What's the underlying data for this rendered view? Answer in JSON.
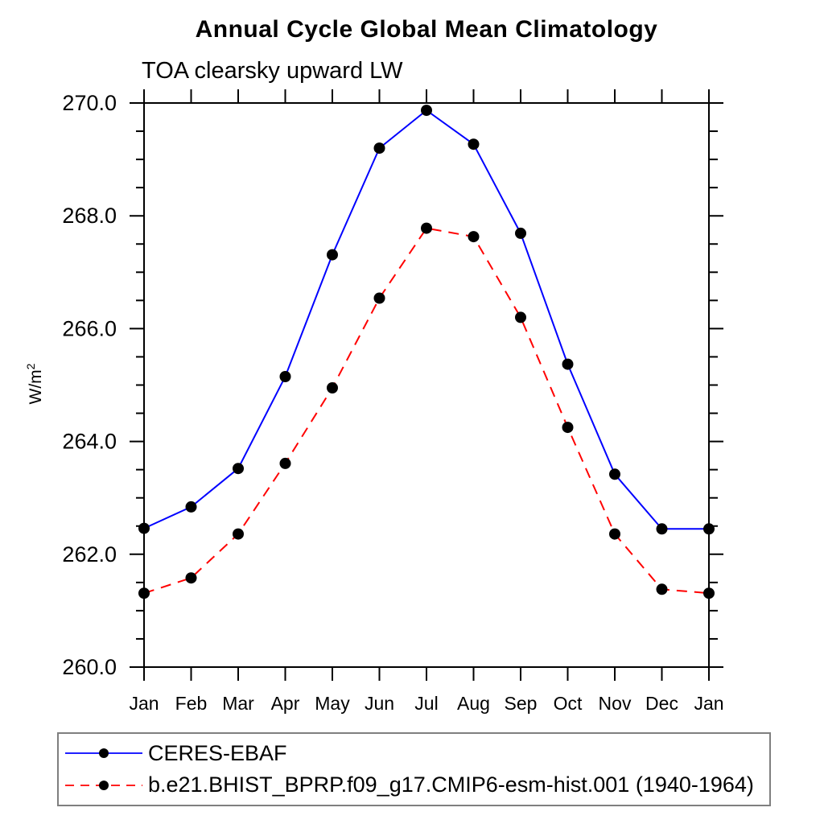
{
  "header": {
    "title": "Annual Cycle Global Mean Climatology",
    "subtitle": "TOA clearsky upward LW"
  },
  "chart_data": {
    "type": "line",
    "title": "Annual Cycle Global Mean Climatology",
    "subtitle": "TOA clearsky upward LW",
    "xlabel": "",
    "ylabel": {
      "base": "W/m",
      "sup": "2"
    },
    "categories": [
      "Jan",
      "Feb",
      "Mar",
      "Apr",
      "May",
      "Jun",
      "Jul",
      "Aug",
      "Sep",
      "Oct",
      "Nov",
      "Dec",
      "Jan"
    ],
    "ylim": [
      260.0,
      270.0
    ],
    "y_major_ticks": [
      260.0,
      262.0,
      264.0,
      266.0,
      268.0,
      270.0
    ],
    "y_tick_labels": [
      "260.0",
      "262.0",
      "264.0",
      "266.0",
      "268.0",
      "270.0"
    ],
    "y_minor_step": 0.5,
    "grid": false,
    "legend_position": "bottom-left-box",
    "axis_color": "#000000",
    "background_color": "#ffffff",
    "legend_border_color": "#7f7f7f",
    "series": [
      {
        "name": "CERES-EBAF",
        "color": "#0000ff",
        "dash": "solid",
        "marker": "circle",
        "marker_color": "#000000",
        "values": [
          262.46,
          262.84,
          263.52,
          265.15,
          267.31,
          269.2,
          269.87,
          269.27,
          267.69,
          265.37,
          263.42,
          262.45,
          262.45
        ]
      },
      {
        "name": "b.e21.BHIST_BPRP.f09_g17.CMIP6-esm-hist.001 (1940-1964)",
        "color": "#ff0000",
        "dash": "dashed",
        "marker": "circle",
        "marker_color": "#000000",
        "values": [
          261.31,
          261.58,
          262.36,
          263.61,
          264.95,
          266.54,
          267.78,
          267.63,
          266.2,
          264.25,
          262.36,
          261.38,
          261.31
        ]
      }
    ]
  }
}
